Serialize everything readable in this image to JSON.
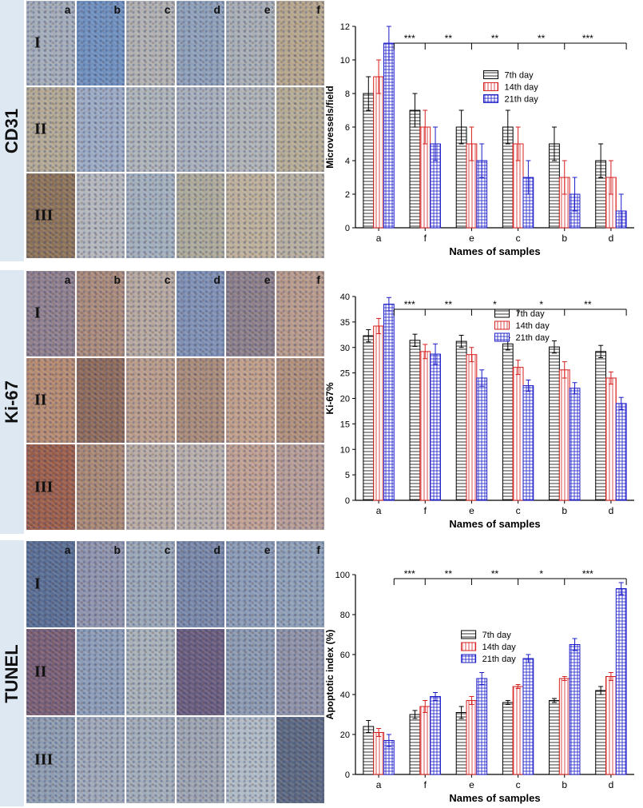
{
  "column_letters": [
    "a",
    "b",
    "c",
    "d",
    "e",
    "f"
  ],
  "row_numerals": [
    "I",
    "II",
    "III"
  ],
  "panels": [
    {
      "id": "cd31",
      "stain_label": "CD31",
      "tile_colors": [
        [
          "#a3acb8",
          "#6f8fbd",
          "#b0b0b0",
          "#8e9fb8",
          "#a8aeb4",
          "#b5a58c"
        ],
        [
          "#b2a894",
          "#9ba9c2",
          "#aeb3b8",
          "#a7afbb",
          "#b0b3b6",
          "#b5ab95"
        ],
        [
          "#8c7258",
          "#b3b6bb",
          "#a3aebb",
          "#ada99a",
          "#bdb09b",
          "#b6ae9f"
        ]
      ],
      "chart_data": {
        "type": "bar",
        "ylabel": "Microvessels/field",
        "xlabel": "Names of samples",
        "categories": [
          "a",
          "f",
          "e",
          "c",
          "b",
          "d"
        ],
        "ylim": [
          0,
          12
        ],
        "yticks": [
          0,
          2,
          4,
          6,
          8,
          10,
          12
        ],
        "legend_position": "right",
        "series": [
          {
            "name": "7th day",
            "color": "#000000",
            "pattern": "hline",
            "values": [
              8,
              7,
              6,
              6,
              5,
              4
            ],
            "errors": [
              1,
              1,
              1,
              1,
              1,
              1
            ]
          },
          {
            "name": "14th day",
            "color": "#d61f1f",
            "pattern": "vline",
            "values": [
              9,
              6,
              5,
              5,
              3,
              3
            ],
            "errors": [
              1,
              1,
              1,
              1,
              1,
              1
            ]
          },
          {
            "name": "21th day",
            "color": "#1c1cc8",
            "pattern": "grid",
            "values": [
              11,
              5,
              4,
              3,
              2,
              1
            ],
            "errors": [
              1,
              1,
              1,
              1,
              1,
              1
            ]
          }
        ],
        "significance": [
          "***",
          "**",
          "**",
          "**",
          "***"
        ],
        "sig_level": 11
      }
    },
    {
      "id": "ki67",
      "stain_label": "Ki-67",
      "tile_colors": [
        [
          "#8f7f8c",
          "#a98a7a",
          "#b6a89e",
          "#7f90b3",
          "#8c7f89",
          "#b79a8a"
        ],
        [
          "#b48a70",
          "#8d6a5a",
          "#b99c8a",
          "#a88a78",
          "#c09f8a",
          "#b08f7a"
        ],
        [
          "#9b5e4a",
          "#a88774",
          "#b8aba3",
          "#b7aeaa",
          "#bfa092",
          "#b59c95"
        ]
      ],
      "chart_data": {
        "type": "bar",
        "ylabel": "Ki-67%",
        "xlabel": "Names of samples",
        "categories": [
          "a",
          "f",
          "e",
          "c",
          "b",
          "d"
        ],
        "ylim": [
          0,
          40
        ],
        "yticks": [
          0,
          5,
          10,
          15,
          20,
          25,
          30,
          35,
          40
        ],
        "legend_position": "top-right",
        "series": [
          {
            "name": "7th day",
            "color": "#000000",
            "pattern": "hline",
            "values": [
              32.3,
              31.4,
              31.2,
              30.7,
              30.1,
              29.2
            ],
            "errors": [
              1.2,
              1.2,
              1.2,
              1.2,
              1.2,
              1.2
            ]
          },
          {
            "name": "14th day",
            "color": "#d61f1f",
            "pattern": "vline",
            "values": [
              34.2,
              29.2,
              28.6,
              26.1,
              25.6,
              24.0
            ],
            "errors": [
              1.5,
              1.4,
              1.4,
              1.4,
              1.6,
              1.2
            ]
          },
          {
            "name": "21th day",
            "color": "#1c1cc8",
            "pattern": "grid",
            "values": [
              38.5,
              28.7,
              24.0,
              22.5,
              22.0,
              19.0
            ],
            "errors": [
              1.3,
              2.0,
              1.6,
              1.1,
              1.1,
              1.2
            ]
          }
        ],
        "significance": [
          "***",
          "**",
          "*",
          "*",
          "**"
        ],
        "sig_level": 37.5
      }
    },
    {
      "id": "tunel",
      "stain_label": "TUNEL",
      "tile_colors": [
        [
          "#5a6e93",
          "#8f93ab",
          "#9aa6b6",
          "#7987a7",
          "#8b9bb5",
          "#8e9fb6"
        ],
        [
          "#7a5f74",
          "#8c9cb6",
          "#a8b1b8",
          "#6a5c7d",
          "#8c9ab0",
          "#8f92a6"
        ],
        [
          "#8e9cb0",
          "#9fa8b8",
          "#a2acb8",
          "#9da4b0",
          "#b0bac4",
          "#5c6880"
        ]
      ],
      "chart_data": {
        "type": "bar",
        "ylabel": "Apoptotic index (%)",
        "xlabel": "Names of samples",
        "categories": [
          "a",
          "f",
          "e",
          "c",
          "b",
          "d"
        ],
        "ylim": [
          0,
          100
        ],
        "yticks": [
          0,
          20,
          40,
          60,
          80,
          100
        ],
        "legend_position": "center-right",
        "series": [
          {
            "name": "7th day",
            "color": "#000000",
            "pattern": "hline",
            "values": [
              24,
              30,
              31,
              36,
              37,
              42
            ],
            "errors": [
              3,
              2,
              3,
              1,
              1,
              2
            ]
          },
          {
            "name": "14th day",
            "color": "#d61f1f",
            "pattern": "vline",
            "values": [
              21,
              34,
              37,
              44,
              48,
              49
            ],
            "errors": [
              2,
              3,
              2,
              1,
              1,
              2
            ]
          },
          {
            "name": "21th day",
            "color": "#1c1cc8",
            "pattern": "grid",
            "values": [
              17,
              39,
              48,
              58,
              65,
              93
            ],
            "errors": [
              3,
              2,
              3,
              2,
              3,
              3
            ]
          }
        ],
        "significance": [
          "***",
          "**",
          "**",
          "*",
          "***"
        ],
        "sig_level": 98
      }
    }
  ]
}
